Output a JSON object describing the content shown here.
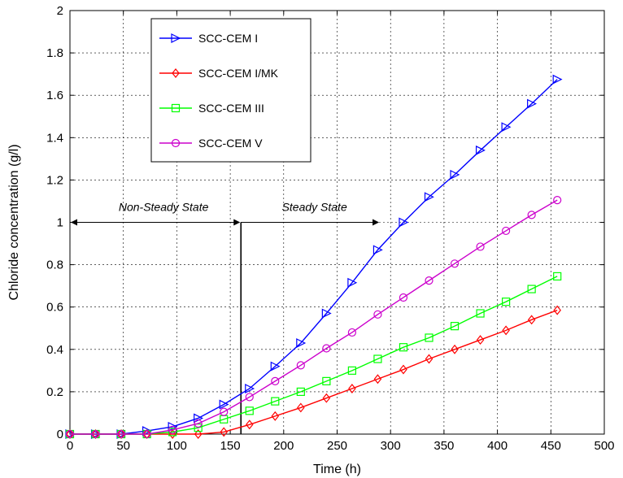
{
  "chart_data": {
    "type": "line",
    "xlabel": "Time (h)",
    "ylabel": "Chloride concentration (g/l)",
    "xlim": [
      0,
      500
    ],
    "ylim": [
      0,
      2
    ],
    "xticks": [
      "0",
      "50",
      "100",
      "150",
      "200",
      "250",
      "300",
      "350",
      "400",
      "450",
      "500"
    ],
    "yticks": [
      "0",
      "0.2",
      "0.4",
      "0.6",
      "0.8",
      "1",
      "1.2",
      "1.4",
      "1.6",
      "1.8",
      "2"
    ],
    "grid": true,
    "legend_position": "top-left",
    "x": [
      0,
      24,
      48,
      72,
      96,
      120,
      144,
      168,
      192,
      216,
      240,
      264,
      288,
      312,
      336,
      360,
      384,
      408,
      432,
      456
    ],
    "series": [
      {
        "name": "SCC-CEM I",
        "color": "#0000ff",
        "marker": "triangle-right",
        "values": [
          0,
          0,
          0,
          0.015,
          0.035,
          0.075,
          0.14,
          0.215,
          0.32,
          0.43,
          0.57,
          0.715,
          0.87,
          1.0,
          1.12,
          1.225,
          1.34,
          1.45,
          1.56,
          1.675
        ]
      },
      {
        "name": "SCC-CEM I/MK",
        "color": "#ff0000",
        "marker": "diamond",
        "values": [
          0,
          0,
          0,
          0,
          0,
          0,
          0.01,
          0.045,
          0.085,
          0.125,
          0.17,
          0.215,
          0.26,
          0.305,
          0.355,
          0.4,
          0.445,
          0.49,
          0.54,
          0.585
        ]
      },
      {
        "name": "SCC-CEM III",
        "color": "#00ff00",
        "marker": "square",
        "values": [
          0,
          0,
          0,
          0,
          0.01,
          0.03,
          0.07,
          0.11,
          0.155,
          0.2,
          0.25,
          0.3,
          0.355,
          0.41,
          0.455,
          0.51,
          0.57,
          0.625,
          0.685,
          0.745
        ]
      },
      {
        "name": "SCC-CEM V",
        "color": "#cc00cc",
        "marker": "circle",
        "values": [
          0,
          0,
          0,
          0,
          0.02,
          0.05,
          0.105,
          0.175,
          0.25,
          0.325,
          0.405,
          0.48,
          0.565,
          0.645,
          0.725,
          0.805,
          0.885,
          0.96,
          1.035,
          1.105
        ]
      }
    ],
    "annotations": {
      "left_label": "Non-Steady State",
      "right_label": "Steady State",
      "arrow_y": 1.0,
      "boundary_x": 160,
      "left_arrow_x": [
        0,
        160
      ],
      "right_arrow_x": [
        160,
        290
      ]
    }
  }
}
